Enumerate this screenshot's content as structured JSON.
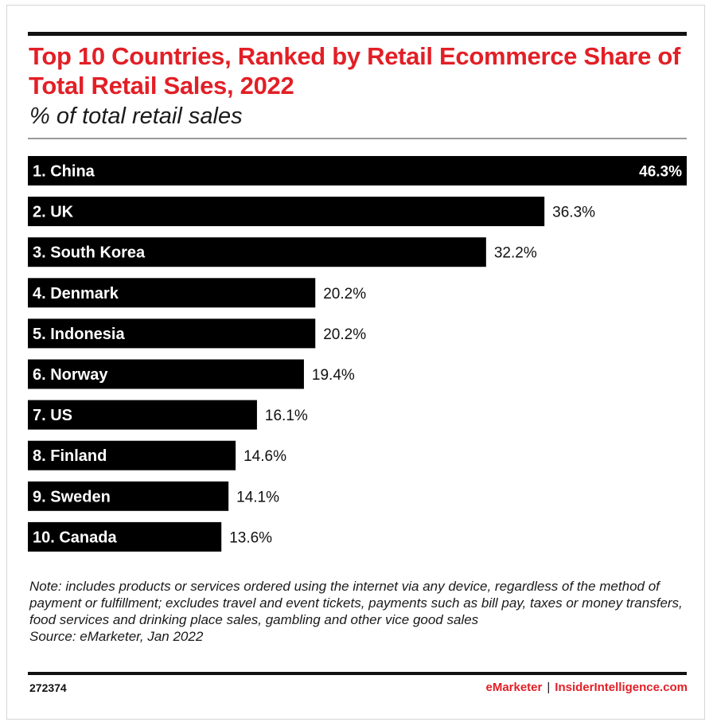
{
  "title": "Top 10 Countries, Ranked by Retail Ecommerce Share of Total Retail Sales, 2022",
  "subtitle": "% of total retail sales",
  "chart_data": {
    "type": "bar",
    "orientation": "horizontal",
    "categories": [
      "1. China",
      "2. UK",
      "3. South Korea",
      "4. Denmark",
      "5. Indonesia",
      "6. Norway",
      "7. US",
      "8. Finland",
      "9. Sweden",
      "10. Canada"
    ],
    "values": [
      46.3,
      36.3,
      32.2,
      20.2,
      20.2,
      19.4,
      16.1,
      14.6,
      14.1,
      13.6
    ],
    "value_labels": [
      "46.3%",
      "36.3%",
      "32.2%",
      "20.2%",
      "20.2%",
      "19.4%",
      "16.1%",
      "14.6%",
      "14.1%",
      "13.6%"
    ],
    "title": "Top 10 Countries, Ranked by Retail Ecommerce Share of Total Retail Sales, 2022",
    "subtitle": "% of total retail sales",
    "bar_color": "#000000",
    "grid": false
  },
  "note": "Note: includes products or services ordered using the internet via any device, regardless of the method of payment or fulfillment; excludes travel and event tickets, payments such as bill pay, taxes or money transfers, food services and drinking place sales, gambling and other vice good sales",
  "source": "Source: eMarketer, Jan 2022",
  "footer": {
    "id": "272374",
    "brand_left": "eMarketer",
    "separator": "|",
    "brand_right": "InsiderIntelligence.com"
  },
  "colors": {
    "accent": "#e21f26",
    "text": "#111111"
  }
}
